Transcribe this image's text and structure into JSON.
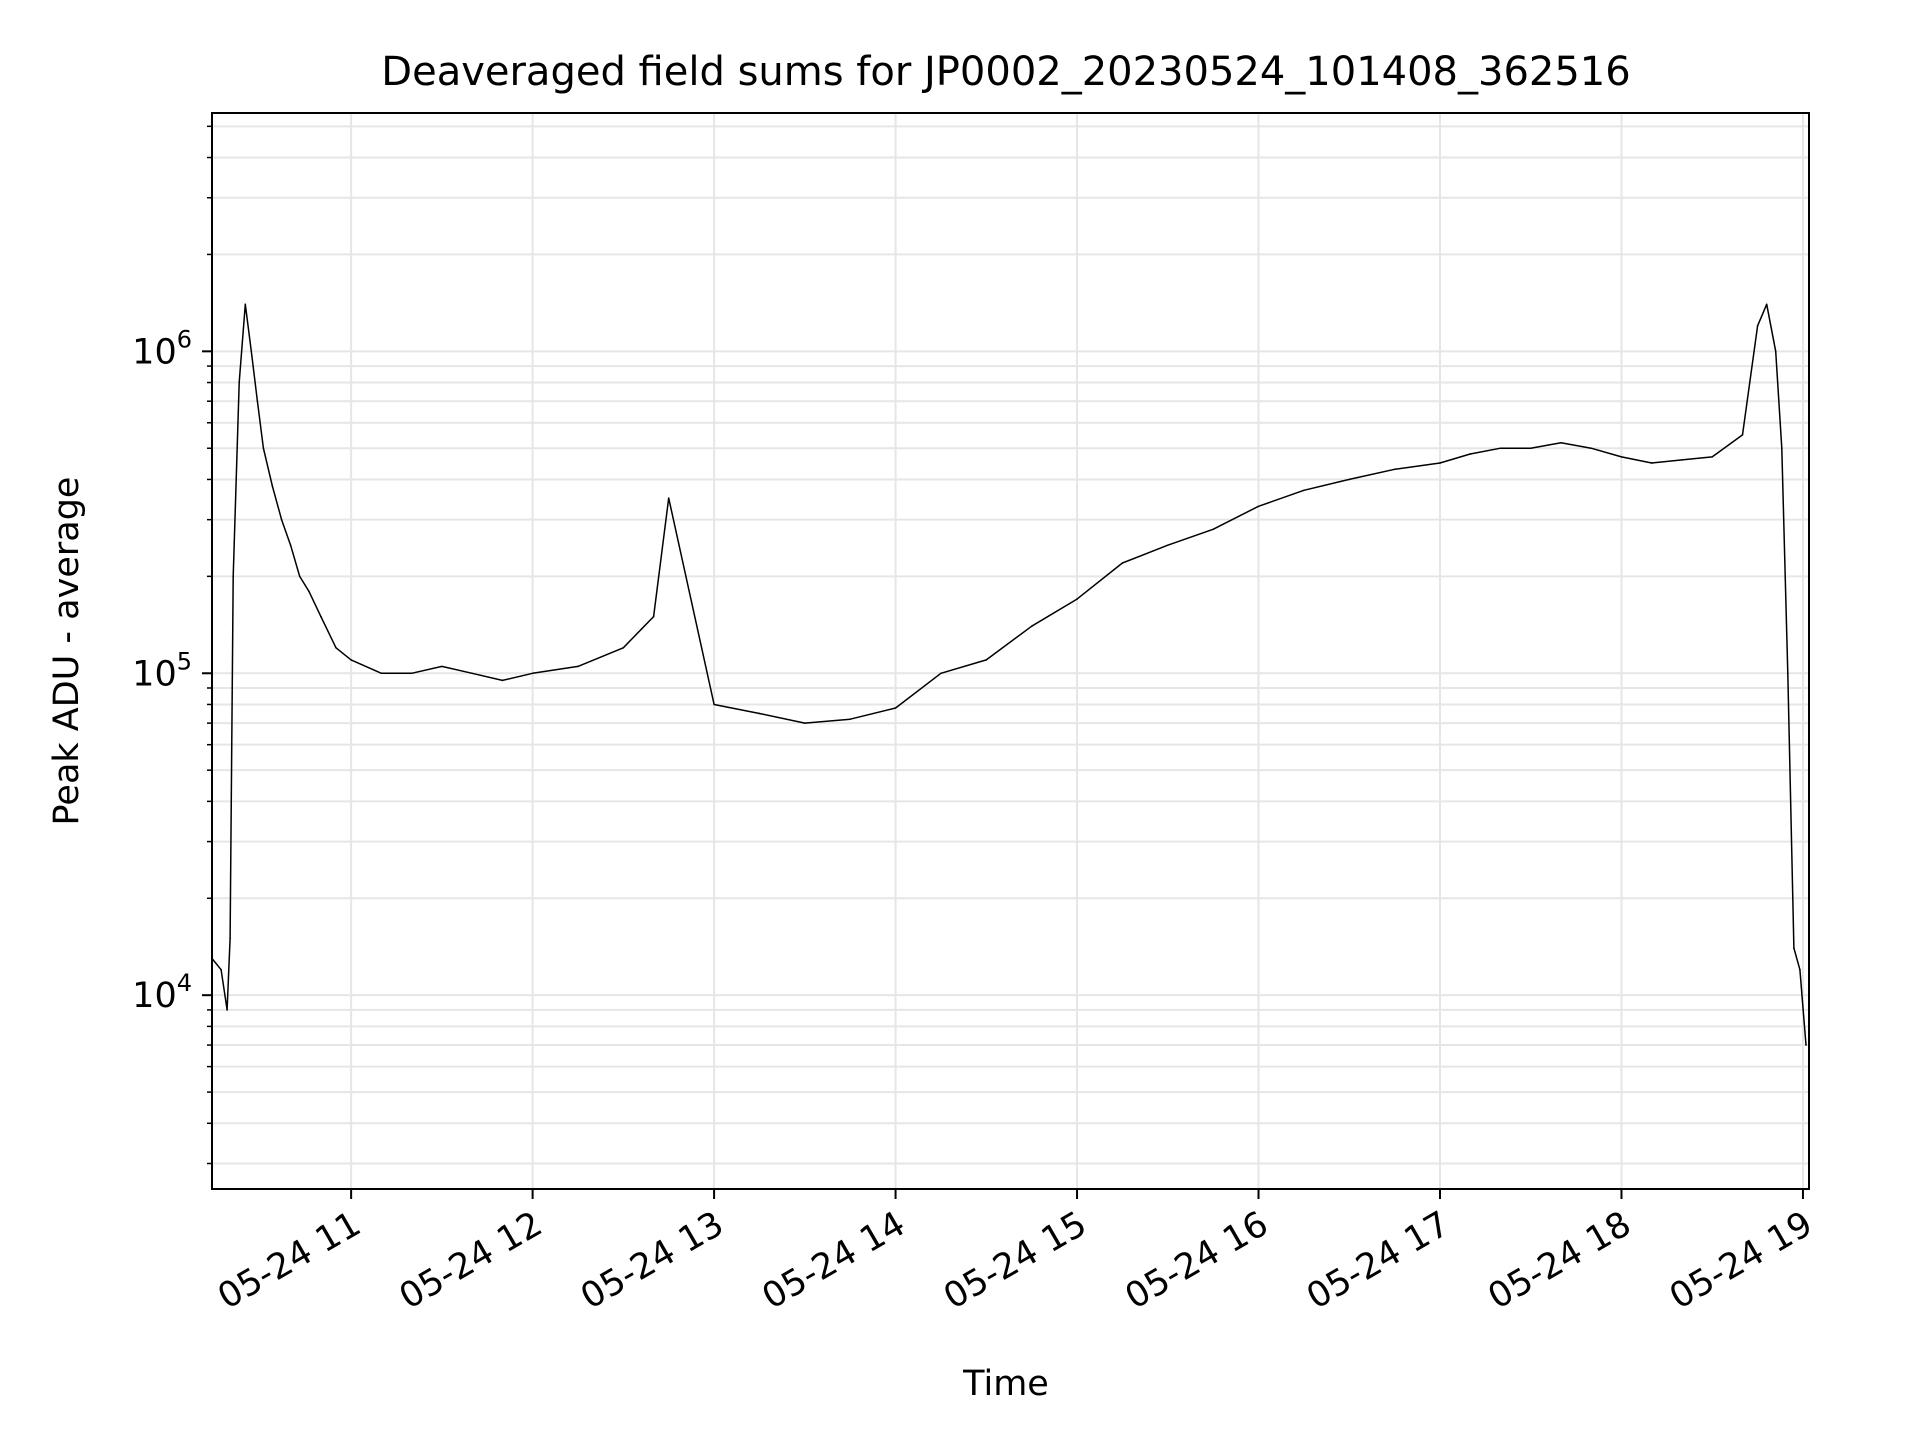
{
  "chart_data": {
    "type": "line",
    "title": "Deaveraged field sums for JP0002_20230524_101408_362516",
    "xlabel": "Time",
    "ylabel": "Peak ADU - average",
    "yscale": "log",
    "grid": true,
    "grid_minor": true,
    "line_color": "#000000",
    "xlim": [
      "2023-05-24 10:14",
      "2023-05-24 19:02"
    ],
    "ylim": [
      2500,
      5500000
    ],
    "x_ticks": [
      {
        "value": "2023-05-24 11:00",
        "label": "05-24 11"
      },
      {
        "value": "2023-05-24 12:00",
        "label": "05-24 12"
      },
      {
        "value": "2023-05-24 13:00",
        "label": "05-24 13"
      },
      {
        "value": "2023-05-24 14:00",
        "label": "05-24 14"
      },
      {
        "value": "2023-05-24 15:00",
        "label": "05-24 15"
      },
      {
        "value": "2023-05-24 16:00",
        "label": "05-24 16"
      },
      {
        "value": "2023-05-24 17:00",
        "label": "05-24 17"
      },
      {
        "value": "2023-05-24 18:00",
        "label": "05-24 18"
      },
      {
        "value": "2023-05-24 19:00",
        "label": "05-24 19"
      }
    ],
    "y_ticks": [
      {
        "value": 10000,
        "base": "10",
        "exp": "4"
      },
      {
        "value": 100000,
        "base": "10",
        "exp": "5"
      },
      {
        "value": 1000000,
        "base": "10",
        "exp": "6"
      }
    ],
    "series": [
      {
        "x": [
          "2023-05-24 10:14",
          "2023-05-24 10:17",
          "2023-05-24 10:19",
          "2023-05-24 10:20",
          "2023-05-24 10:21",
          "2023-05-24 10:23",
          "2023-05-24 10:25",
          "2023-05-24 10:27",
          "2023-05-24 10:29",
          "2023-05-24 10:31",
          "2023-05-24 10:34",
          "2023-05-24 10:37",
          "2023-05-24 10:40",
          "2023-05-24 10:43",
          "2023-05-24 10:46",
          "2023-05-24 10:50",
          "2023-05-24 10:55",
          "2023-05-24 11:00",
          "2023-05-24 11:10",
          "2023-05-24 11:20",
          "2023-05-24 11:30",
          "2023-05-24 11:40",
          "2023-05-24 11:50",
          "2023-05-24 12:00",
          "2023-05-24 12:15",
          "2023-05-24 12:30",
          "2023-05-24 12:40",
          "2023-05-24 12:45",
          "2023-05-24 13:00",
          "2023-05-24 13:15",
          "2023-05-24 13:30",
          "2023-05-24 13:45",
          "2023-05-24 14:00",
          "2023-05-24 14:15",
          "2023-05-24 14:30",
          "2023-05-24 14:45",
          "2023-05-24 15:00",
          "2023-05-24 15:15",
          "2023-05-24 15:30",
          "2023-05-24 15:45",
          "2023-05-24 16:00",
          "2023-05-24 16:15",
          "2023-05-24 16:30",
          "2023-05-24 16:45",
          "2023-05-24 17:00",
          "2023-05-24 17:10",
          "2023-05-24 17:20",
          "2023-05-24 17:30",
          "2023-05-24 17:40",
          "2023-05-24 17:50",
          "2023-05-24 18:00",
          "2023-05-24 18:10",
          "2023-05-24 18:20",
          "2023-05-24 18:30",
          "2023-05-24 18:40",
          "2023-05-24 18:45",
          "2023-05-24 18:48",
          "2023-05-24 18:51",
          "2023-05-24 18:53",
          "2023-05-24 18:55",
          "2023-05-24 18:57",
          "2023-05-24 18:59",
          "2023-05-24 19:01"
        ],
        "values": [
          13000,
          12000,
          9000,
          15000,
          200000,
          800000,
          1400000,
          1000000,
          700000,
          500000,
          380000,
          300000,
          250000,
          200000,
          180000,
          150000,
          120000,
          110000,
          100000,
          100000,
          105000,
          100000,
          95000,
          100000,
          105000,
          120000,
          150000,
          350000,
          80000,
          75000,
          70000,
          72000,
          78000,
          100000,
          110000,
          140000,
          170000,
          220000,
          250000,
          280000,
          330000,
          370000,
          400000,
          430000,
          450000,
          480000,
          500000,
          500000,
          520000,
          500000,
          470000,
          450000,
          460000,
          470000,
          550000,
          1200000,
          1400000,
          1000000,
          500000,
          100000,
          14000,
          12000,
          7000
        ]
      }
    ]
  }
}
